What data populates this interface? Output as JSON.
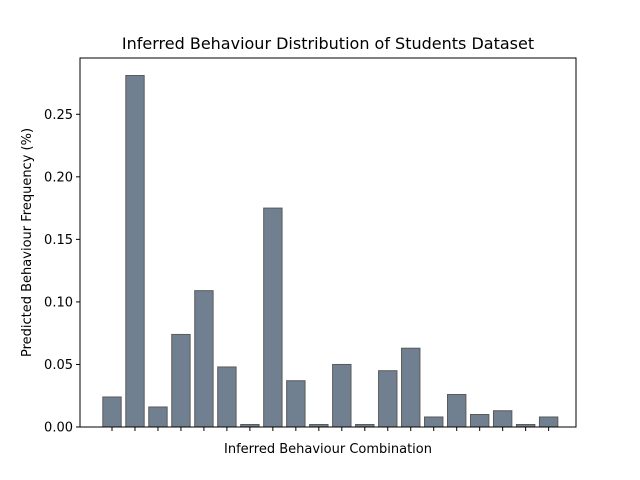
{
  "chart_data": {
    "type": "bar",
    "title": "Inferred Behaviour Distribution of Students Dataset",
    "xlabel": "Inferred Behaviour Combination",
    "ylabel": "Predicted Behaviour Frequency (%)",
    "ylim": [
      0,
      0.295
    ],
    "yticks": [
      "0.00",
      "0.05",
      "0.10",
      "0.15",
      "0.20",
      "0.25"
    ],
    "values": [
      0.024,
      0.281,
      0.016,
      0.074,
      0.109,
      0.048,
      0.002,
      0.175,
      0.037,
      0.002,
      0.05,
      0.002,
      0.045,
      0.063,
      0.008,
      0.026,
      0.01,
      0.013,
      0.002,
      0.008
    ],
    "bar_color": "#708090",
    "bar_edge_color": "#5a5a5a",
    "grid": false,
    "legend": "none"
  }
}
